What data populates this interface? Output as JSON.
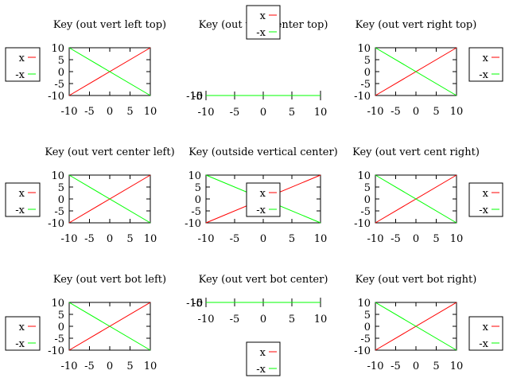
{
  "figure": {
    "background": "#ffffff",
    "line_colors": {
      "x": "#ff0000",
      "-x": "#00ff00"
    }
  },
  "chart_data": [
    {
      "type": "line",
      "title": "Key (out vert left top)",
      "x": [
        -10,
        10
      ],
      "series": [
        {
          "name": "x",
          "values": [
            -10,
            10
          ]
        },
        {
          "name": "-x",
          "values": [
            10,
            -10
          ]
        }
      ],
      "xlim": [
        -10,
        10
      ],
      "ylim": [
        -10,
        10
      ],
      "xticks": [
        -10,
        -5,
        0,
        5,
        10
      ],
      "yticks": [
        -10,
        -5,
        0,
        5,
        10
      ],
      "legend": "outside-left-top"
    },
    {
      "type": "line",
      "title": "Key (out vert center top)",
      "x": [
        -10,
        10
      ],
      "series": [
        {
          "name": "x",
          "values": [
            -10,
            10
          ]
        },
        {
          "name": "-x",
          "values": [
            10,
            -10
          ]
        }
      ],
      "xlim": [
        -10,
        10
      ],
      "ylim": [
        -10,
        10
      ],
      "xticks": [
        -10,
        -5,
        0,
        5,
        10
      ],
      "yticks": [
        -10,
        -5,
        0,
        5,
        10
      ],
      "legend": "outside-top-center"
    },
    {
      "type": "line",
      "title": "Key (out vert right top)",
      "x": [
        -10,
        10
      ],
      "series": [
        {
          "name": "x",
          "values": [
            -10,
            10
          ]
        },
        {
          "name": "-x",
          "values": [
            10,
            -10
          ]
        }
      ],
      "xlim": [
        -10,
        10
      ],
      "ylim": [
        -10,
        10
      ],
      "xticks": [
        -10,
        -5,
        0,
        5,
        10
      ],
      "yticks": [
        -10,
        -5,
        0,
        5,
        10
      ],
      "legend": "outside-right-top"
    },
    {
      "type": "line",
      "title": "Key (out vert center left)",
      "x": [
        -10,
        10
      ],
      "series": [
        {
          "name": "x",
          "values": [
            -10,
            10
          ]
        },
        {
          "name": "-x",
          "values": [
            10,
            -10
          ]
        }
      ],
      "xlim": [
        -10,
        10
      ],
      "ylim": [
        -10,
        10
      ],
      "xticks": [
        -10,
        -5,
        0,
        5,
        10
      ],
      "yticks": [
        -10,
        -5,
        0,
        5,
        10
      ],
      "legend": "outside-left-center"
    },
    {
      "type": "line",
      "title": "Key (outside vertical center)",
      "x": [
        -10,
        10
      ],
      "series": [
        {
          "name": "x",
          "values": [
            -10,
            10
          ]
        },
        {
          "name": "-x",
          "values": [
            10,
            -10
          ]
        }
      ],
      "xlim": [
        -10,
        10
      ],
      "ylim": [
        -10,
        10
      ],
      "xticks": [
        -10,
        -5,
        0,
        5,
        10
      ],
      "yticks": [
        -10,
        -5,
        0,
        5,
        10
      ],
      "legend": "center"
    },
    {
      "type": "line",
      "title": "Key (out vert cent right)",
      "x": [
        -10,
        10
      ],
      "series": [
        {
          "name": "x",
          "values": [
            -10,
            10
          ]
        },
        {
          "name": "-x",
          "values": [
            10,
            -10
          ]
        }
      ],
      "xlim": [
        -10,
        10
      ],
      "ylim": [
        -10,
        10
      ],
      "xticks": [
        -10,
        -5,
        0,
        5,
        10
      ],
      "yticks": [
        -10,
        -5,
        0,
        5,
        10
      ],
      "legend": "outside-right-center"
    },
    {
      "type": "line",
      "title": "Key (out vert bot left)",
      "x": [
        -10,
        10
      ],
      "series": [
        {
          "name": "x",
          "values": [
            -10,
            10
          ]
        },
        {
          "name": "-x",
          "values": [
            10,
            -10
          ]
        }
      ],
      "xlim": [
        -10,
        10
      ],
      "ylim": [
        -10,
        10
      ],
      "xticks": [
        -10,
        -5,
        0,
        5,
        10
      ],
      "yticks": [
        -10,
        -5,
        0,
        5,
        10
      ],
      "legend": "outside-left-bottom"
    },
    {
      "type": "line",
      "title": "Key (out vert bot center)",
      "x": [
        -10,
        10
      ],
      "series": [
        {
          "name": "x",
          "values": [
            -10,
            10
          ]
        },
        {
          "name": "-x",
          "values": [
            10,
            -10
          ]
        }
      ],
      "xlim": [
        -10,
        10
      ],
      "ylim": [
        -10,
        10
      ],
      "xticks": [
        -10,
        -5,
        0,
        5,
        10
      ],
      "yticks": [
        -10,
        -5,
        0,
        5,
        10
      ],
      "legend": "outside-bottom-center"
    },
    {
      "type": "line",
      "title": "Key (out vert bot right)",
      "x": [
        -10,
        10
      ],
      "series": [
        {
          "name": "x",
          "values": [
            -10,
            10
          ]
        },
        {
          "name": "-x",
          "values": [
            10,
            -10
          ]
        }
      ],
      "xlim": [
        -10,
        10
      ],
      "ylim": [
        -10,
        10
      ],
      "xticks": [
        -10,
        -5,
        0,
        5,
        10
      ],
      "yticks": [
        -10,
        -5,
        0,
        5,
        10
      ],
      "legend": "outside-right-bottom"
    }
  ]
}
